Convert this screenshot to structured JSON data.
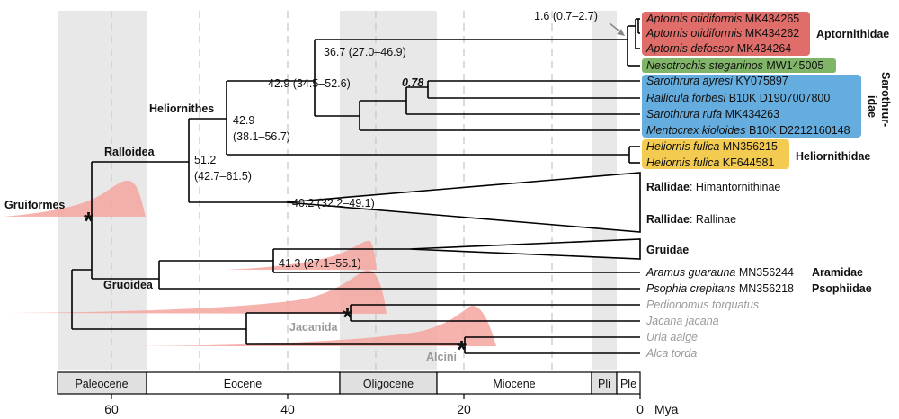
{
  "tips": {
    "aptornis1": {
      "species": "Aptornis otidiformis",
      "acc": "MK434265"
    },
    "aptornis2": {
      "species": "Aptornis otidiformis",
      "acc": "MK434262"
    },
    "aptornis3": {
      "species": "Aptornis defossor",
      "acc": "MK434264"
    },
    "nesotrochis": {
      "species": "Nesotrochis steganinos",
      "acc": "MW145005"
    },
    "sarothrura1": {
      "species": "Sarothrura ayresi",
      "acc": "KY075897"
    },
    "rallicula": {
      "species": "Rallicula forbesi",
      "acc": "B10K D1907007800"
    },
    "sarothrura2": {
      "species": "Sarothrura rufa",
      "acc": "MK434263"
    },
    "mentocrex": {
      "species": "Mentocrex kioloides",
      "acc": "B10K D2212160148"
    },
    "heliornis1": {
      "species": "Heliornis fulica",
      "acc": "MN356215"
    },
    "heliornis2": {
      "species": "Heliornis fulica",
      "acc": "KF644581"
    },
    "aramus": {
      "species": "Aramus guarauna",
      "acc": "MN356244"
    },
    "psophia": {
      "species": "Psophia crepitans",
      "acc": "MN356218"
    },
    "pedionomus": {
      "species": "Pedionomus torquatus"
    },
    "jacana": {
      "species": "Jacana jacana"
    },
    "uria": {
      "species": "Uria aalge"
    },
    "alca": {
      "species": "Alca torda"
    }
  },
  "families": {
    "aptornithidae": "Aptornithidae",
    "sarothruridae_1": "Sarothrur-",
    "sarothruridae_2": "idae",
    "heliornithidae": "Heliornithidae",
    "aramidae": "Aramidae",
    "psophiidae": "Psophiidae"
  },
  "collapsed": {
    "rallidae_1": {
      "bold": "Rallidae",
      "rest": ": Himantornithinae"
    },
    "rallidae_2": {
      "bold": "Rallidae",
      "rest": ": Rallinae"
    },
    "gruidae": "Gruidae"
  },
  "clades": {
    "gruiformes": "Gruiformes",
    "ralloidea": "Ralloidea",
    "heliornithes": "Heliornithes",
    "gruoidea": "Gruoidea",
    "jacanida": "Jacanida",
    "alcini": "Alcini"
  },
  "node_ages": {
    "aptornis": "1.6 (0.7–2.7)",
    "aptornis_nesotrochis": "36.7 (27.0–46.9)",
    "core_1": "42.9 (34.5–52.6)",
    "heliornithes_1": "42.9",
    "heliornithes_2": "(38.1–56.7)",
    "ralloidea_1": "51.2",
    "ralloidea_2": "(42.7–61.5)",
    "rallidae": "40.2 (32.2–49.1)",
    "gruidae_aramus": "41.3 (27.1–55.1)",
    "support": "0.78"
  },
  "epochs": [
    "Paleocene",
    "Eocene",
    "Oligocene",
    "Miocene",
    "Pli",
    "Ple"
  ],
  "axis": {
    "ticks": [
      "60",
      "40",
      "20",
      "0"
    ],
    "unit": "Mya"
  },
  "colors": {
    "aptornithidae": "#d9534f",
    "nesotrochis": "#6aa84f",
    "sarothruridae": "#4a9fd8",
    "heliornithidae": "#f1c232",
    "density": "#f4a6a0",
    "epoch_shade": "#e6e6e6"
  }
}
